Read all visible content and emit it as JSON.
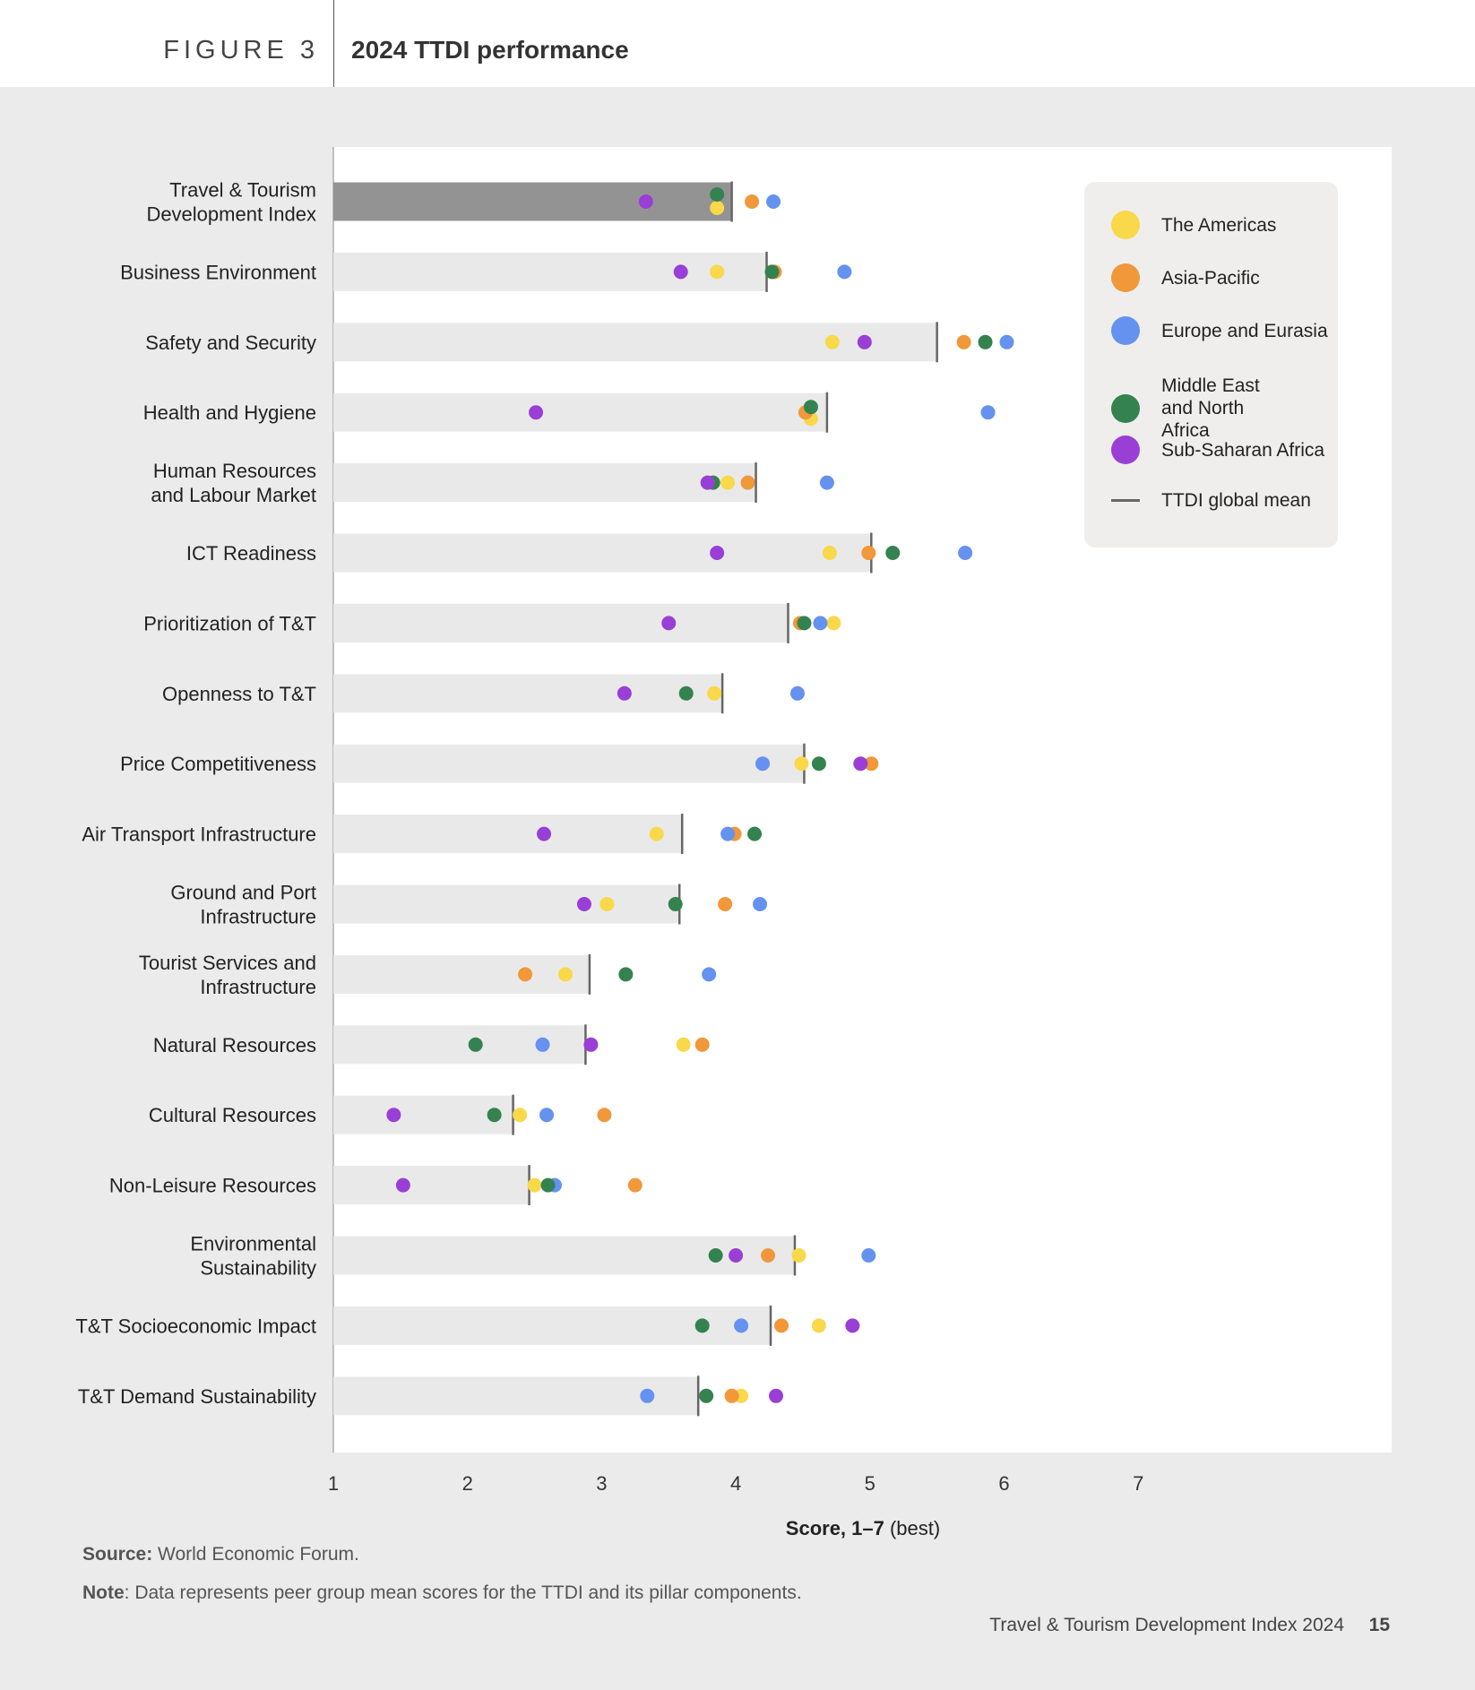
{
  "header": {
    "figure_label": "FIGURE 3",
    "title": "2024 TTDI performance"
  },
  "legend": {
    "items": [
      {
        "label": "The Americas",
        "color": "#f9d84a",
        "kind": "dot"
      },
      {
        "label": "Asia-Pacific",
        "color": "#f0983a",
        "kind": "dot"
      },
      {
        "label": "Europe and Eurasia",
        "color": "#6592ee",
        "kind": "dot"
      },
      {
        "label": "Middle East and North Africa",
        "color": "#34824f",
        "kind": "dot"
      },
      {
        "label": "Sub-Saharan Africa",
        "color": "#9a3fd6",
        "kind": "dot"
      },
      {
        "label": "TTDI global mean",
        "color": "#666666",
        "kind": "line"
      }
    ]
  },
  "chart_data": {
    "type": "scatter",
    "title": "2024 TTDI performance",
    "xlabel_bold": "Score, 1–7",
    "xlabel_rest": " (best)",
    "xlim": [
      1,
      7
    ],
    "xticks": [
      1,
      2,
      3,
      4,
      5,
      6,
      7
    ],
    "categories": [
      [
        "Travel & Tourism",
        "Development Index"
      ],
      [
        "Business Environment"
      ],
      [
        "Safety and Security"
      ],
      [
        "Health and Hygiene"
      ],
      [
        "Human Resources",
        "and Labour Market"
      ],
      [
        "ICT Readiness"
      ],
      [
        "Prioritization of T&T"
      ],
      [
        "Openness to T&T"
      ],
      [
        "Price Competitiveness"
      ],
      [
        "Air Transport Infrastructure"
      ],
      [
        "Ground and Port",
        "Infrastructure"
      ],
      [
        "Tourist Services and",
        "Infrastructure"
      ],
      [
        "Natural Resources"
      ],
      [
        "Cultural Resources"
      ],
      [
        "Non-Leisure Resources"
      ],
      [
        "Environmental",
        "Sustainability"
      ],
      [
        "T&T Socioeconomic Impact"
      ],
      [
        "T&T Demand Sustainability"
      ]
    ],
    "global_mean": [
      3.97,
      4.23,
      5.5,
      4.68,
      4.15,
      5.01,
      4.39,
      3.9,
      4.51,
      3.6,
      3.58,
      2.91,
      2.88,
      2.34,
      2.46,
      4.44,
      4.26,
      3.72
    ],
    "series": [
      {
        "name": "The Americas",
        "color": "#f9d84a",
        "values": [
          3.86,
          3.86,
          4.72,
          4.56,
          3.94,
          4.7,
          4.73,
          3.84,
          4.49,
          3.41,
          3.04,
          2.73,
          3.61,
          2.39,
          2.5,
          4.47,
          4.62,
          4.04
        ]
      },
      {
        "name": "Asia-Pacific",
        "color": "#f0983a",
        "values": [
          4.12,
          4.29,
          5.7,
          4.52,
          4.09,
          4.99,
          4.48,
          null,
          5.01,
          3.99,
          3.92,
          2.43,
          3.75,
          3.02,
          3.25,
          4.24,
          4.34,
          3.97
        ]
      },
      {
        "name": "Europe and Eurasia",
        "color": "#6592ee",
        "values": [
          4.28,
          4.81,
          6.02,
          5.88,
          4.68,
          5.71,
          4.63,
          4.46,
          4.2,
          3.94,
          4.18,
          3.8,
          2.56,
          2.59,
          2.65,
          4.99,
          4.04,
          3.34
        ]
      },
      {
        "name": "Middle East and North Africa",
        "color": "#34824f",
        "values": [
          3.86,
          4.27,
          5.86,
          4.56,
          3.83,
          5.17,
          4.51,
          3.63,
          4.62,
          4.14,
          3.55,
          3.18,
          2.06,
          2.2,
          2.6,
          3.85,
          3.75,
          3.78
        ]
      },
      {
        "name": "Sub-Saharan Africa",
        "color": "#9a3fd6",
        "values": [
          3.33,
          3.59,
          4.96,
          2.51,
          3.79,
          3.86,
          3.5,
          3.17,
          4.93,
          2.57,
          2.87,
          null,
          2.92,
          1.45,
          1.52,
          4.0,
          4.87,
          4.3
        ]
      }
    ],
    "point_offsets": {
      "0": {
        "The Americas": 7,
        "Middle East and North Africa": -8
      },
      "3": {
        "The Americas": 7,
        "Middle East and North Africa": -6
      }
    }
  },
  "footer": {
    "source_label": "Source:",
    "source_text": " World Economic Forum.",
    "note_label": "Note",
    "note_text": ": Data represents peer group mean scores for the TTDI and its pillar components.",
    "publication": "Travel & Tourism Development Index 2024",
    "page": "15"
  }
}
